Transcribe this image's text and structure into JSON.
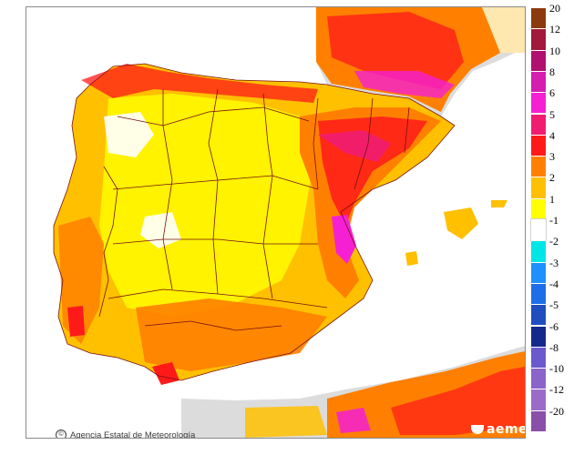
{
  "map": {
    "credit_symbol": "©",
    "credit_text": "Agencia Estatal de Meteorología",
    "brand_text": "aemet",
    "colors": {
      "sea": "#ffffff",
      "outside": "#dcdcdc",
      "border": "#7a1010"
    }
  },
  "legend": {
    "labels": [
      "20",
      "12",
      "10",
      "8",
      "6",
      "5",
      "4",
      "3",
      "2",
      "1",
      "-1",
      "-2",
      "-3",
      "-4",
      "-5",
      "-6",
      "-8",
      "-10",
      "-12",
      "-20"
    ],
    "colors": [
      "#8b3a0f",
      "#a11a3a",
      "#b0106f",
      "#d31eb0",
      "#f51fd3",
      "#f01c72",
      "#ff1a1a",
      "#ff8000",
      "#ffc000",
      "#ffff00",
      "#ffffff",
      "#00e5e5",
      "#1e90ff",
      "#1e6ee8",
      "#1f4fbf",
      "#142a8a",
      "#6a5acd",
      "#8a64c8",
      "#9a6cc8",
      "#8a4fa8"
    ]
  }
}
